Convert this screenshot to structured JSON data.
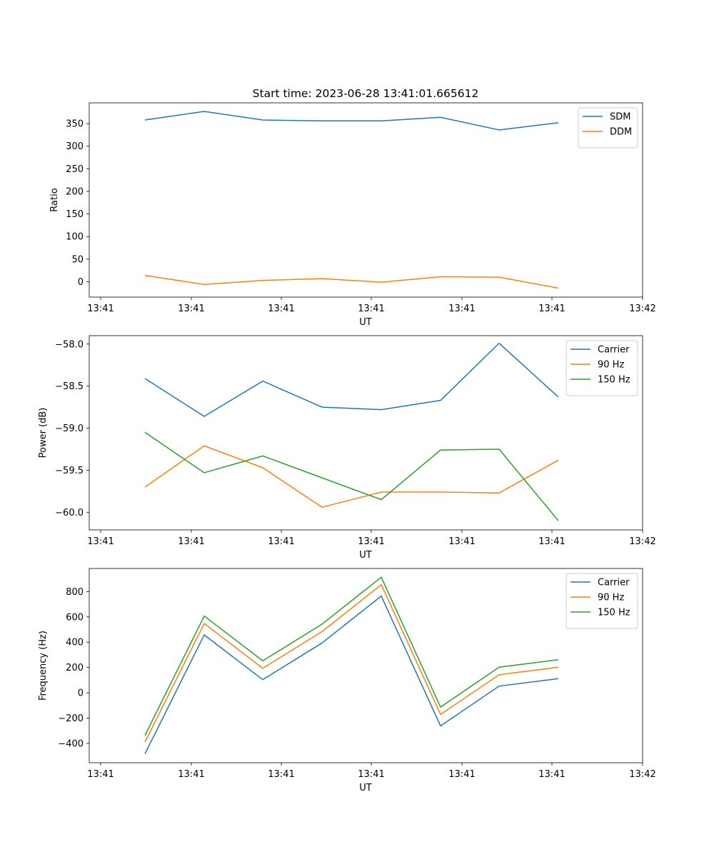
{
  "title": "Start time: 2023-06-28 13:41:01.665612",
  "chart_data": [
    {
      "type": "line",
      "title": "Start time: 2023-06-28 13:41:01.665612",
      "xlabel": "UT",
      "ylabel": "Ratio",
      "x_tick_labels": [
        "13:41",
        "13:41",
        "13:41",
        "13:41",
        "13:41",
        "13:41",
        "13:42"
      ],
      "y_ticks": [
        0,
        50,
        100,
        150,
        200,
        250,
        300,
        350
      ],
      "y_tick_labels": [
        "0",
        "50",
        "100",
        "150",
        "200",
        "250",
        "300",
        "350"
      ],
      "ylim": [
        -34,
        396
      ],
      "x_points": 8,
      "grid": false,
      "legend": "top-right",
      "series": [
        {
          "name": "SDM",
          "color": "#1f77b4",
          "values": [
            358,
            377,
            358,
            356,
            356,
            364,
            336,
            352
          ]
        },
        {
          "name": "DDM",
          "color": "#ff7f0e",
          "values": [
            14,
            -6,
            3,
            7,
            -1,
            11,
            10,
            -14
          ]
        }
      ]
    },
    {
      "type": "line",
      "title": "",
      "xlabel": "UT",
      "ylabel": "Power (dB)",
      "x_tick_labels": [
        "13:41",
        "13:41",
        "13:41",
        "13:41",
        "13:41",
        "13:41",
        "13:42"
      ],
      "y_ticks": [
        -60.0,
        -59.5,
        -59.0,
        -58.5,
        -58.0
      ],
      "y_tick_labels": [
        "−60.0",
        "−59.5",
        "−59.0",
        "−58.5",
        "−58.0"
      ],
      "ylim": [
        -60.21,
        -57.9
      ],
      "x_points": 8,
      "grid": false,
      "legend": "top-right",
      "series": [
        {
          "name": "Carrier",
          "color": "#1f77b4",
          "values": [
            -58.41,
            -58.86,
            -58.44,
            -58.75,
            -58.78,
            -58.67,
            -57.99,
            -58.63
          ]
        },
        {
          "name": "90 Hz",
          "color": "#ff7f0e",
          "values": [
            -59.7,
            -59.21,
            -59.47,
            -59.94,
            -59.76,
            -59.76,
            -59.77,
            -59.38
          ]
        },
        {
          "name": "150 Hz",
          "color": "#2ca02c",
          "values": [
            -59.05,
            -59.53,
            -59.33,
            -59.59,
            -59.85,
            -59.26,
            -59.25,
            -60.1
          ]
        }
      ]
    },
    {
      "type": "line",
      "title": "",
      "xlabel": "UT",
      "ylabel": "Frequency (Hz)",
      "x_tick_labels": [
        "13:41",
        "13:41",
        "13:41",
        "13:41",
        "13:41",
        "13:41",
        "13:42"
      ],
      "y_ticks": [
        -400,
        -200,
        0,
        200,
        400,
        600,
        800
      ],
      "y_tick_labels": [
        "−400",
        "−200",
        "0",
        "200",
        "400",
        "600",
        "800"
      ],
      "ylim": [
        -553,
        983
      ],
      "x_points": 8,
      "grid": false,
      "legend": "top-right",
      "series": [
        {
          "name": "Carrier",
          "color": "#1f77b4",
          "values": [
            -483,
            458,
            104,
            394,
            765,
            -262,
            53,
            112
          ]
        },
        {
          "name": "90 Hz",
          "color": "#ff7f0e",
          "values": [
            -390,
            548,
            194,
            484,
            855,
            -171,
            143,
            202
          ]
        },
        {
          "name": "150 Hz",
          "color": "#2ca02c",
          "values": [
            -337,
            607,
            253,
            543,
            914,
            -113,
            202,
            262
          ]
        }
      ]
    }
  ]
}
